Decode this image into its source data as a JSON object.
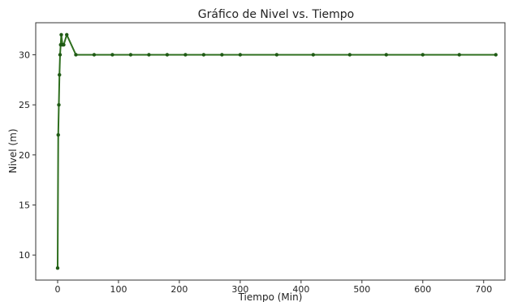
{
  "chart_data": {
    "type": "line",
    "title": "Gráfico de Nivel vs. Tiempo",
    "xlabel": "Tiempo (Min)",
    "ylabel": "Nivel (m)",
    "xlim": [
      -36,
      735
    ],
    "ylim": [
      7.5,
      33.2
    ],
    "xticks": [
      0,
      100,
      200,
      300,
      400,
      500,
      600,
      700
    ],
    "yticks": [
      10,
      15,
      20,
      25,
      30
    ],
    "grid": false,
    "colors": {
      "series": "#2f6f1f",
      "marker": "#1f5a14",
      "axis": "#333333"
    },
    "series": [
      {
        "x": [
          0,
          1,
          2,
          3,
          4,
          5,
          6,
          8,
          10,
          15,
          30,
          60,
          90,
          120,
          150,
          180,
          210,
          240,
          270,
          300,
          360,
          420,
          480,
          540,
          600,
          660,
          720
        ],
        "y": [
          8.7,
          22,
          25,
          28,
          30,
          31,
          32,
          31,
          31,
          32,
          30,
          30,
          30,
          30,
          30,
          30,
          30,
          30,
          30,
          30,
          30,
          30,
          30,
          30,
          30,
          30,
          30
        ]
      }
    ]
  }
}
